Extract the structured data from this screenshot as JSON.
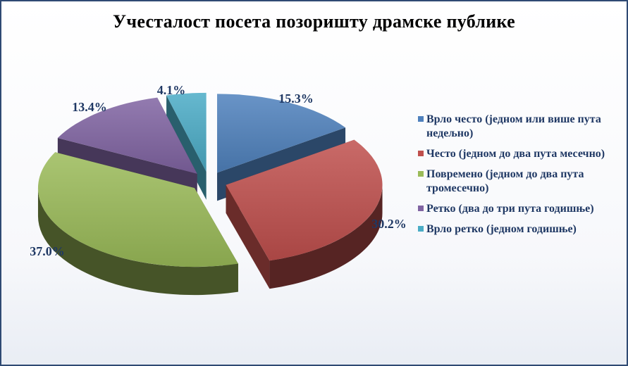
{
  "chart_data": {
    "type": "pie",
    "title": "Учесталост  посета  позоришту драмске публике",
    "slices": [
      {
        "label": "Врло често (једном или више пута недељно)",
        "value": 15.3,
        "display": "15.3%",
        "color": "#4f81bd"
      },
      {
        "label": "Често (једном до два пута месечно)",
        "value": 30.2,
        "display": "30.2%",
        "color": "#c0504d"
      },
      {
        "label": "Повремено (једном до два пута тромесечно)",
        "value": 37.0,
        "display": "37.0%",
        "color": "#9bbb59"
      },
      {
        "label": "Ретко (два до три пута годишње)",
        "value": 13.4,
        "display": "13.4%",
        "color": "#8064a2"
      },
      {
        "label": "Врло ретко (једном годишње)",
        "value": 4.1,
        "display": "4.1%",
        "color": "#4bacc6"
      }
    ],
    "legend_position": "right",
    "style": "3d-exploded"
  }
}
